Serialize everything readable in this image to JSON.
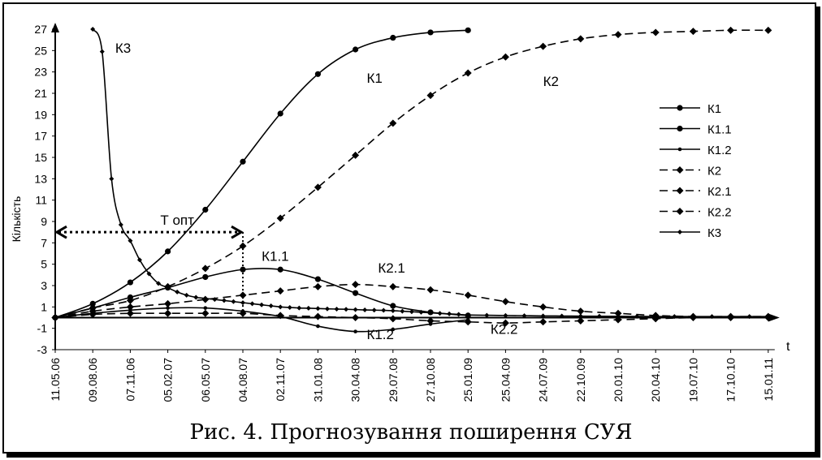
{
  "caption": "Рис. 4. Прогнозування поширення СУЯ",
  "chart_data": {
    "type": "line",
    "ylabel": "Кількість",
    "xlabel": "t",
    "ylim": [
      -3,
      27
    ],
    "yticks": [
      27,
      25,
      23,
      21,
      19,
      17,
      15,
      13,
      11,
      9,
      7,
      5,
      3,
      1,
      -1,
      -3
    ],
    "categories": [
      "11.05.06",
      "09.08.06",
      "07.11.06",
      "05.02.07",
      "06.05.07",
      "04.08.07",
      "02.11.07",
      "31.01.08",
      "30.04.08",
      "29.07.08",
      "27.10.08",
      "25.01.09",
      "25.04.09",
      "24.07.09",
      "22.10.09",
      "20.01.10",
      "20.04.10",
      "19.07.10",
      "17.10.10",
      "15.01.11"
    ],
    "grid": false,
    "legend_position": "right",
    "series": [
      {
        "name": "К1",
        "style": "solid",
        "marker": "circle",
        "x": [
          0,
          1,
          2,
          3,
          4,
          5,
          6,
          7,
          8,
          9,
          10,
          11
        ],
        "values": [
          0,
          1.3,
          3.3,
          6.2,
          10.1,
          14.6,
          19.1,
          22.8,
          25.1,
          26.2,
          26.7,
          26.9
        ]
      },
      {
        "name": "К1.1",
        "style": "solid",
        "marker": "circle",
        "x": [
          0,
          1,
          2,
          3,
          4,
          5,
          6,
          7,
          8,
          9,
          10,
          11
        ],
        "values": [
          0,
          0.9,
          1.9,
          2.8,
          3.8,
          4.5,
          4.5,
          3.6,
          2.3,
          1.1,
          0.5,
          0.2
        ]
      },
      {
        "name": "К1.2",
        "style": "solid",
        "marker": "dot",
        "x": [
          0,
          1,
          2,
          3,
          4,
          5,
          6,
          7,
          8,
          9,
          10,
          11
        ],
        "values": [
          0,
          0.4,
          0.7,
          0.9,
          0.9,
          0.6,
          0.1,
          -0.8,
          -1.3,
          -1.1,
          -0.6,
          -0.2
        ]
      },
      {
        "name": "К2",
        "style": "dashed",
        "marker": "diamond",
        "x": [
          0,
          1,
          2,
          3,
          4,
          5,
          6,
          7,
          8,
          9,
          10,
          11,
          12,
          13,
          14,
          15,
          16,
          17,
          18,
          19
        ],
        "values": [
          0,
          0.9,
          1.6,
          2.9,
          4.6,
          6.7,
          9.3,
          12.2,
          15.2,
          18.2,
          20.8,
          22.9,
          24.4,
          25.4,
          26.1,
          26.5,
          26.7,
          26.8,
          26.9,
          26.9
        ]
      },
      {
        "name": "К2.1",
        "style": "dashed",
        "marker": "diamond",
        "x": [
          0,
          1,
          2,
          3,
          4,
          5,
          6,
          7,
          8,
          9,
          10,
          11,
          12,
          13,
          14,
          15,
          16,
          17,
          18,
          19
        ],
        "values": [
          0,
          0.6,
          1.0,
          1.3,
          1.7,
          2.1,
          2.5,
          2.9,
          3.1,
          2.9,
          2.6,
          2.1,
          1.5,
          1.0,
          0.6,
          0.4,
          0.2,
          0.1,
          0.1,
          0.1
        ]
      },
      {
        "name": "К2.2",
        "style": "dashed",
        "marker": "diamond",
        "x": [
          0,
          1,
          2,
          3,
          4,
          5,
          6,
          7,
          8,
          9,
          10,
          11,
          12,
          13,
          14,
          15,
          16,
          17,
          18,
          19
        ],
        "values": [
          0,
          0.3,
          0.4,
          0.4,
          0.4,
          0.4,
          0.2,
          0.1,
          0,
          -0.1,
          -0.3,
          -0.4,
          -0.5,
          -0.4,
          -0.3,
          -0.2,
          -0.1,
          0,
          0,
          0
        ]
      },
      {
        "name": "К3",
        "style": "solid",
        "marker": "small-diamond",
        "x": [
          1,
          1.25,
          1.5,
          1.75,
          2,
          2.25,
          2.5,
          2.75,
          3,
          3.25,
          3.5,
          3.75,
          4,
          4.25,
          4.5,
          4.75,
          5,
          5.25,
          5.5,
          5.75,
          6,
          6.25,
          6.5,
          6.75,
          7,
          7.25,
          7.5,
          7.75,
          8,
          8.25,
          8.5,
          8.75,
          9,
          9.25,
          9.5,
          9.75,
          10,
          10.25,
          10.5,
          10.75,
          11,
          11.5,
          12,
          12.5,
          13,
          13.5,
          14,
          14.5,
          15,
          15.5,
          16,
          16.5,
          17,
          17.5,
          18,
          18.5,
          19
        ],
        "values": [
          27,
          24.9,
          13,
          8.7,
          7.2,
          5.4,
          4.1,
          3.2,
          2.8,
          2.4,
          2.1,
          1.9,
          1.8,
          1.7,
          1.6,
          1.5,
          1.4,
          1.3,
          1.2,
          1.1,
          1.0,
          0.95,
          0.9,
          0.88,
          0.85,
          0.82,
          0.8,
          0.78,
          0.75,
          0.72,
          0.7,
          0.68,
          0.65,
          0.6,
          0.55,
          0.5,
          0.45,
          0.4,
          0.35,
          0.3,
          0.25,
          0.22,
          0.2,
          0.18,
          0.16,
          0.15,
          0.14,
          0.13,
          0.12,
          0.11,
          0.1,
          0.1,
          0.1,
          0.1,
          0.1,
          0.1,
          0.1
        ]
      }
    ],
    "annotations": [
      {
        "text": "К3",
        "x": 1.6,
        "y": 24.8
      },
      {
        "text": "К1",
        "x": 8.3,
        "y": 22.0
      },
      {
        "text": "К2",
        "x": 13.0,
        "y": 21.7
      },
      {
        "text": "К1.1",
        "x": 5.5,
        "y": 5.3
      },
      {
        "text": "К2.1",
        "x": 8.6,
        "y": 4.2
      },
      {
        "text": "К1.2",
        "x": 8.3,
        "y": -2.0
      },
      {
        "text": "К2.2",
        "x": 11.6,
        "y": -1.5
      },
      {
        "text": "Т опт",
        "x": 2.8,
        "y": 8.7
      }
    ],
    "topt": {
      "label": "Т опт",
      "from_x": 0,
      "to_x": 5,
      "y": 8
    }
  }
}
